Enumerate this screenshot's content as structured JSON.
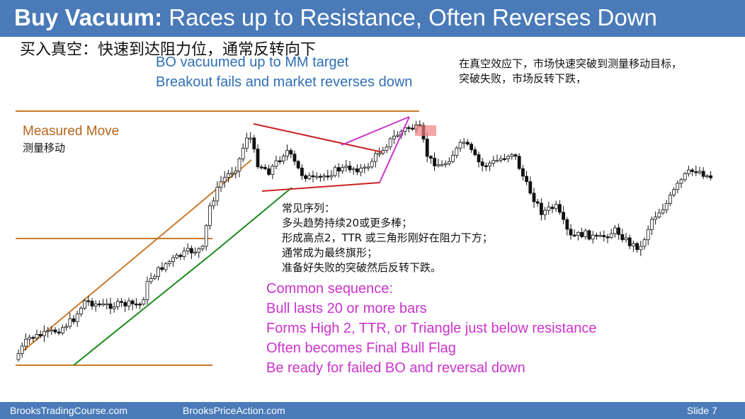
{
  "title": {
    "bold": "Buy Vacuum:",
    "rest": " Races up to Resistance, Often Reverses Down"
  },
  "subtitle_cn": "买入真空：快速到达阻力位，通常反转向下",
  "top_blue_lines": [
    "BO vacuumed up to MM target",
    "Breakout fails and market reverses down"
  ],
  "top_cn_lines": [
    "在真空效应下，市场快速突破到测量移动目标，",
    "突破失败，市场反转下跌，"
  ],
  "measured_move": {
    "en": "Measured Move",
    "cn": "测量移动"
  },
  "cn_sequence": [
    "常见序列：",
    "多头趋势持续20或更多棒；",
    "形成高点2，TTR 或三角形刚好在阻力下方；",
    "通常成为最终旗形；",
    "准备好失败的突破然后反转下跌。"
  ],
  "en_sequence": [
    "Common sequence:",
    "Bull lasts 20 or more bars",
    "Forms High 2, TTR, or Triangle just below resistance",
    "Often becomes Final Bull Flag",
    "Be ready for failed BO and reversal down"
  ],
  "footer": {
    "left": "BrooksTradingCourse.com",
    "middle": "BrooksPriceAction.com",
    "right": "Slide  7"
  },
  "colors": {
    "title_bar": "#4a7ab8",
    "measured_move_line": "#c87a2c",
    "trend_line": "#1a8a1a",
    "triangle": "#cc2222",
    "wedge": "#cc33cc",
    "highlight": "#f08080"
  }
}
